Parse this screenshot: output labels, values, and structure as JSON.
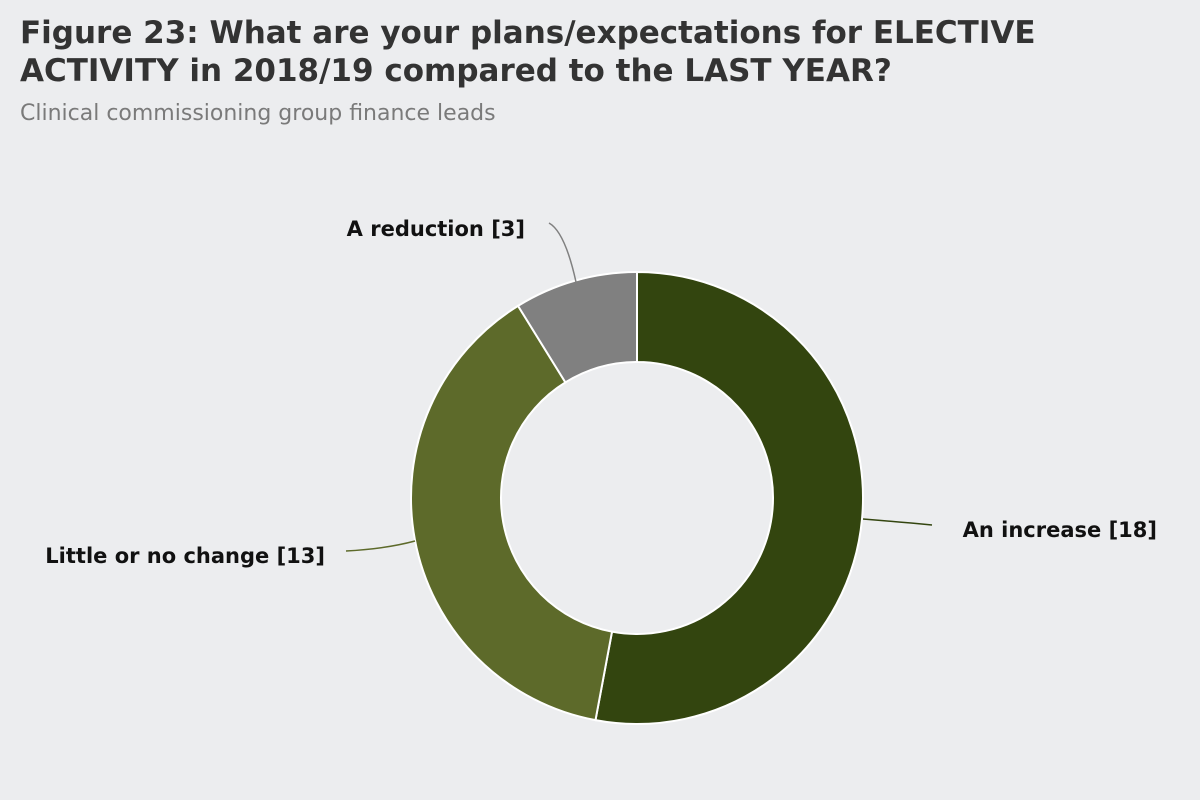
{
  "header": {
    "title_line1": "Figure 23: What are your plans/expectations for ELECTIVE",
    "title_line2": "ACTIVITY in 2018/19 compared to the LAST YEAR?",
    "subtitle": "Clinical commissioning group finance leads"
  },
  "chart_data": {
    "type": "pie",
    "style": "donut",
    "title": "Figure 23: What are your plans/expectations for ELECTIVE ACTIVITY in 2018/19 compared to the LAST YEAR?",
    "subtitle": "Clinical commissioning group finance leads",
    "categories": [
      "An increase",
      "Little or no change",
      "A reduction"
    ],
    "values": [
      18,
      13,
      3
    ],
    "labels": [
      "An increase [18]",
      "Little or no change [13]",
      "A reduction [3]"
    ],
    "colors": [
      "#33450f",
      "#5d6a2a",
      "#808080"
    ],
    "legend": "none"
  }
}
